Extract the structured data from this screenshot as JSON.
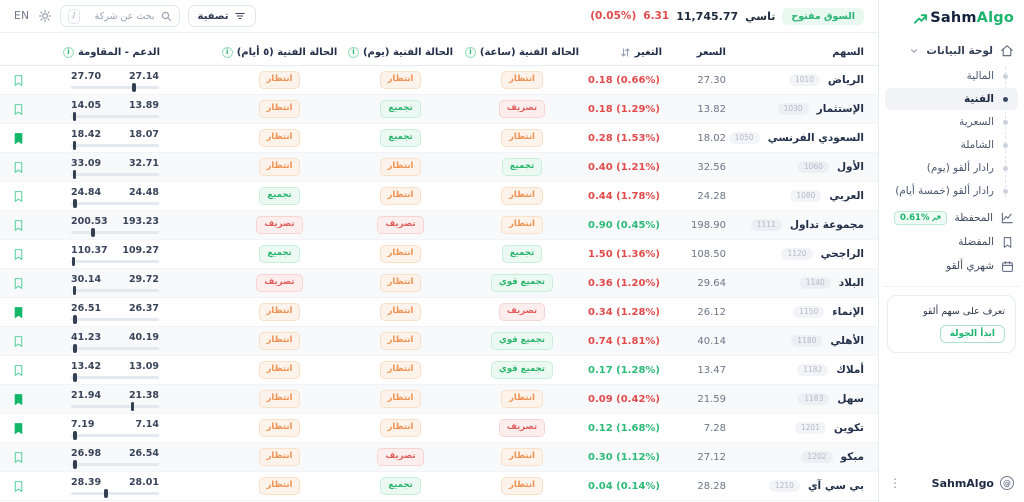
{
  "brand": {
    "logo_primary": "Sahm",
    "logo_secondary": "Algo",
    "footer": "SahmAlgo"
  },
  "topbar": {
    "lang": "EN",
    "search_placeholder": "بحث عن شركة",
    "search_shortcut": "/",
    "filter_label": "تصفية",
    "market_status": "السوق مفتوح",
    "index_name": "تاسي",
    "index_value": "11,745.77",
    "index_change": "6.31",
    "index_change_pct": "(0.05%)",
    "index_direction": "down"
  },
  "sidebar": {
    "dashboard_label": "لوحة البيانات",
    "sub_items": [
      {
        "label": "المالية",
        "selected": false
      },
      {
        "label": "الفنية",
        "selected": true
      },
      {
        "label": "السعرية",
        "selected": false
      },
      {
        "label": "الشاملة",
        "selected": false
      },
      {
        "label": "رادار ألقو (يوم)",
        "selected": false
      },
      {
        "label": "رادار ألقو (خمسة أيام)",
        "selected": false
      }
    ],
    "portfolio_label": "المحفظة",
    "portfolio_badge": "0.61%",
    "favorites_label": "المفضلة",
    "monthly_label": "شهري ألقو",
    "promo_text": "تعرف على سهم ألقو",
    "promo_button": "ابدأ الجولة"
  },
  "table": {
    "headers": {
      "symbol": "السهم",
      "price": "السعر",
      "change": "التغير",
      "hour": "الحالة الفنية (ساعة)",
      "day": "الحالة الفنية (يوم)",
      "five_day": "الحالة الفنية (٥ أيام)",
      "support_resistance": "الدعم - المقاومة"
    },
    "rows": [
      {
        "code": "1010",
        "name": "الرياض",
        "price": "27.30",
        "change": "0.18 (0.66%)",
        "dir": "down",
        "hour": "انتظار",
        "day": "انتظار",
        "five": "انتظار",
        "res": "27.70",
        "sup": "27.14",
        "pos": 0.72,
        "fav": false
      },
      {
        "code": "1030",
        "name": "الإستثمار",
        "price": "13.82",
        "change": "0.18 (1.29%)",
        "dir": "down",
        "hour": "تصريف",
        "day": "تجميع",
        "five": "انتظار",
        "res": "14.05",
        "sup": "13.89",
        "pos": 0.04,
        "fav": false
      },
      {
        "code": "1050",
        "name": "السعودي الفرنسي",
        "price": "18.02",
        "change": "0.28 (1.53%)",
        "dir": "down",
        "hour": "انتظار",
        "day": "تجميع",
        "five": "انتظار",
        "res": "18.42",
        "sup": "18.07",
        "pos": 0.04,
        "fav": true
      },
      {
        "code": "1060",
        "name": "الأول",
        "price": "32.56",
        "change": "0.40 (1.21%)",
        "dir": "down",
        "hour": "تجميع",
        "day": "انتظار",
        "five": "انتظار",
        "res": "33.09",
        "sup": "32.71",
        "pos": 0.04,
        "fav": false
      },
      {
        "code": "1080",
        "name": "العربي",
        "price": "24.28",
        "change": "0.44 (1.78%)",
        "dir": "down",
        "hour": "انتظار",
        "day": "انتظار",
        "five": "تجميع",
        "res": "24.84",
        "sup": "24.48",
        "pos": 0.05,
        "fav": false
      },
      {
        "code": "1111",
        "name": "مجموعة تداول",
        "price": "198.90",
        "change": "0.90 (0.45%)",
        "dir": "up",
        "hour": "انتظار",
        "day": "تصريف",
        "five": "تصريف",
        "res": "200.53",
        "sup": "193.23",
        "pos": 0.25,
        "fav": false
      },
      {
        "code": "1120",
        "name": "الراجحي",
        "price": "108.50",
        "change": "1.50 (1.36%)",
        "dir": "down",
        "hour": "تجميع",
        "day": "انتظار",
        "five": "تجميع",
        "res": "110.37",
        "sup": "109.27",
        "pos": 0.03,
        "fav": false
      },
      {
        "code": "1140",
        "name": "البلاد",
        "price": "29.64",
        "change": "0.36 (1.20%)",
        "dir": "down",
        "hour": "تجميع قوي",
        "day": "انتظار",
        "five": "تصريف",
        "res": "30.14",
        "sup": "29.72",
        "pos": 0.04,
        "fav": false
      },
      {
        "code": "1150",
        "name": "الإنماء",
        "price": "26.12",
        "change": "0.34 (1.28%)",
        "dir": "down",
        "hour": "تصريف",
        "day": "انتظار",
        "five": "انتظار",
        "res": "26.51",
        "sup": "26.37",
        "pos": 0.05,
        "fav": true
      },
      {
        "code": "1180",
        "name": "الأهلي",
        "price": "40.14",
        "change": "0.74 (1.81%)",
        "dir": "down",
        "hour": "تجميع قوي",
        "day": "انتظار",
        "five": "انتظار",
        "res": "41.23",
        "sup": "40.19",
        "pos": 0.05,
        "fav": false
      },
      {
        "code": "1182",
        "name": "أملاك",
        "price": "13.47",
        "change": "0.17 (1.28%)",
        "dir": "up",
        "hour": "تجميع قوي",
        "day": "انتظار",
        "five": "انتظار",
        "res": "13.42",
        "sup": "13.09",
        "pos": 0.05,
        "fav": false
      },
      {
        "code": "1183",
        "name": "سهل",
        "price": "21.59",
        "change": "0.09 (0.42%)",
        "dir": "down",
        "hour": "انتظار",
        "day": "انتظار",
        "five": "انتظار",
        "res": "21.94",
        "sup": "21.38",
        "pos": 0.7,
        "fav": true
      },
      {
        "code": "1201",
        "name": "تكوين",
        "price": "7.28",
        "change": "0.12 (1.68%)",
        "dir": "up",
        "hour": "تصريف",
        "day": "انتظار",
        "five": "انتظار",
        "res": "7.19",
        "sup": "7.14",
        "pos": 0.05,
        "fav": true
      },
      {
        "code": "1202",
        "name": "مبكو",
        "price": "27.12",
        "change": "0.30 (1.12%)",
        "dir": "up",
        "hour": "انتظار",
        "day": "تصريف",
        "five": "انتظار",
        "res": "26.98",
        "sup": "26.54",
        "pos": 0.05,
        "fav": false
      },
      {
        "code": "1210",
        "name": "بي سي آي",
        "price": "28.28",
        "change": "0.04 (0.14%)",
        "dir": "up",
        "hour": "انتظار",
        "day": "تجميع",
        "five": "انتظار",
        "res": "28.39",
        "sup": "28.01",
        "pos": 0.4,
        "fav": false
      }
    ]
  }
}
